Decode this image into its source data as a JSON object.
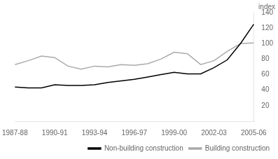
{
  "chart_data": {
    "type": "line",
    "ylabel": "index",
    "categories": [
      "1987-88",
      null,
      null,
      "1990-91",
      null,
      null,
      "1993-94",
      null,
      null,
      "1996-97",
      null,
      null,
      "1999-00",
      null,
      null,
      "2002-03",
      null,
      null,
      "2005-06"
    ],
    "series": [
      {
        "name": "Non-building construction",
        "color": "#000000",
        "values": [
          44,
          43,
          43,
          47,
          46,
          46,
          47,
          50,
          52,
          54,
          57,
          60,
          63,
          61,
          61,
          69,
          79,
          100,
          125
        ]
      },
      {
        "name": "Building construction",
        "color": "#aaaaaa",
        "values": [
          73,
          78,
          84,
          82,
          71,
          67,
          71,
          70,
          73,
          72,
          74,
          80,
          89,
          87,
          73,
          78,
          90,
          100,
          101
        ]
      }
    ],
    "ylim": [
      0,
      140
    ],
    "yticks": [
      20,
      40,
      60,
      80,
      100,
      120,
      140
    ],
    "grid": false,
    "legend": "lower right"
  }
}
